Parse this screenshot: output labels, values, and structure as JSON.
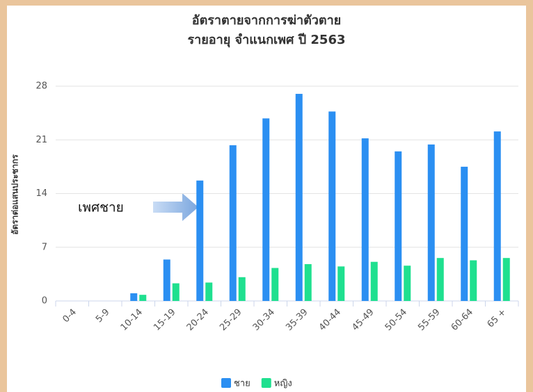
{
  "chart_data": {
    "type": "bar",
    "title": "อัตราตายจากการฆ่าตัวตาย",
    "subtitle": "รายอายุ จำแนกเพศ ปี 2563",
    "y_label": "อัตราต่อแสนประชากร",
    "annotation": "เพศชาย",
    "categories": [
      "0-4",
      "5-9",
      "10-14",
      "15-19",
      "20-24",
      "25-29",
      "30-34",
      "35-39",
      "40-44",
      "45-49",
      "50-54",
      "55-59",
      "60-64",
      "65 +"
    ],
    "series": [
      {
        "name": "ชาย",
        "color": "#2b8ff2",
        "values": [
          0,
          0,
          1.0,
          5.4,
          15.7,
          20.3,
          23.8,
          27.0,
          24.7,
          21.2,
          19.5,
          20.4,
          17.5,
          22.1
        ]
      },
      {
        "name": "หญิง",
        "color": "#1fe08f",
        "values": [
          0,
          0,
          0.8,
          2.3,
          2.4,
          3.1,
          4.3,
          4.8,
          4.5,
          5.1,
          4.6,
          5.6,
          5.3,
          5.6
        ]
      }
    ],
    "ylim": [
      0,
      28
    ],
    "yticks": [
      0,
      7,
      14,
      21,
      28
    ],
    "grid": true
  }
}
